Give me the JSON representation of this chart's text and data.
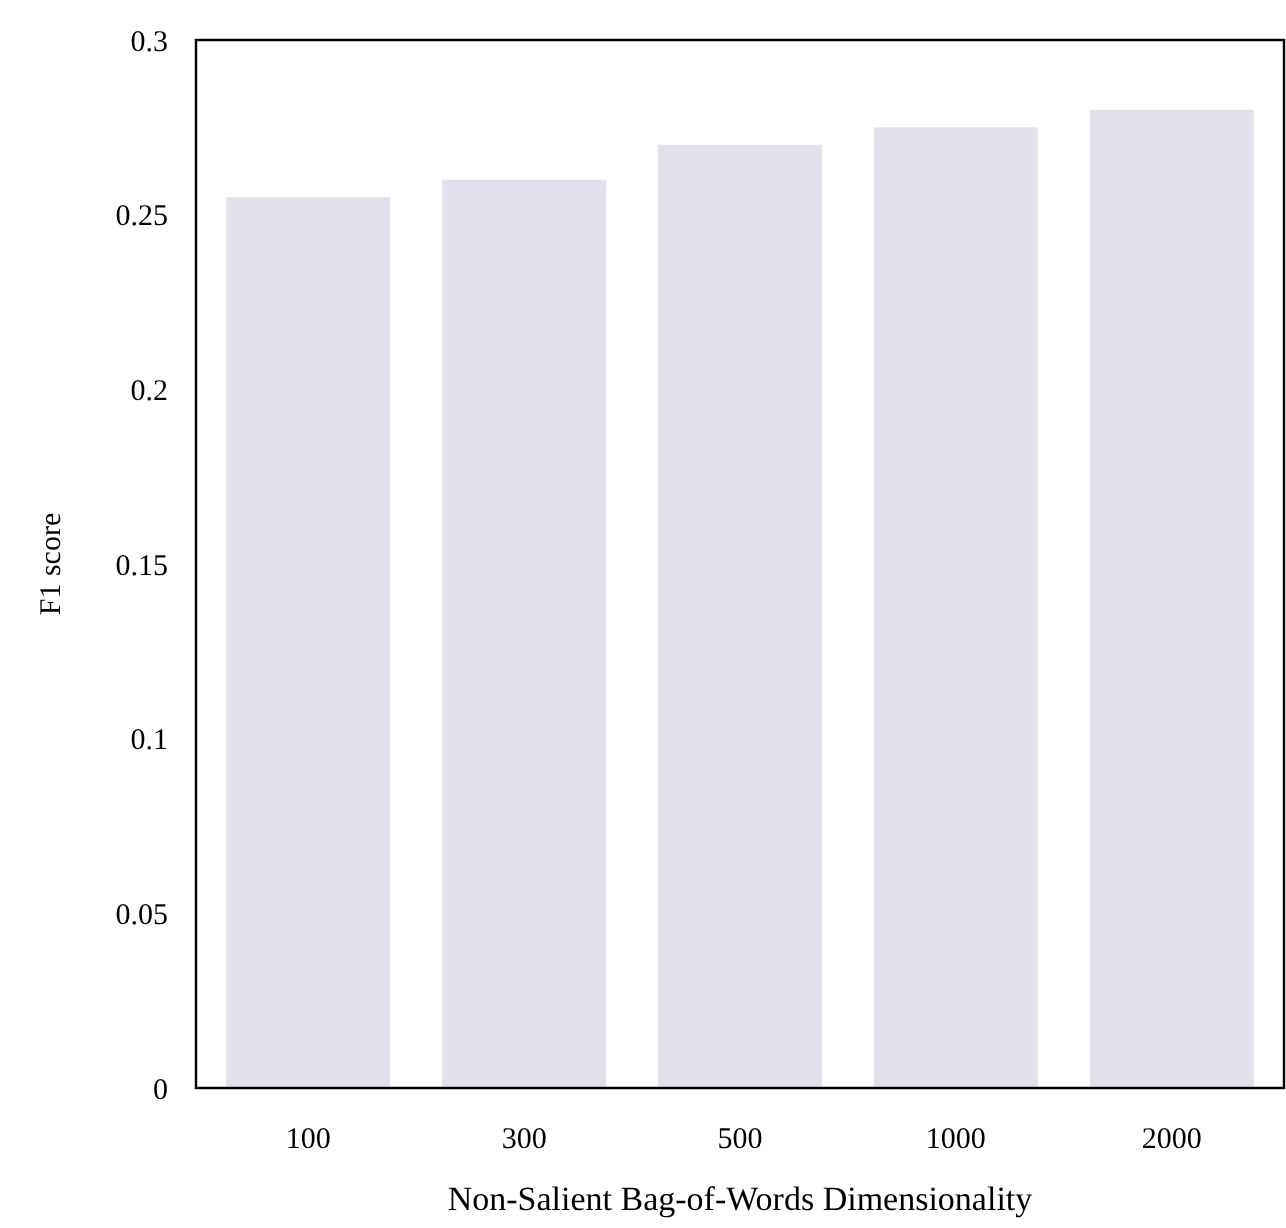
{
  "chart_data": {
    "type": "bar",
    "xlabel": "Non-Salient Bag-of-Words Dimensionality",
    "ylabel": "F1 score",
    "categories": [
      "100",
      "300",
      "500",
      "1000",
      "2000"
    ],
    "values": [
      0.255,
      0.26,
      0.27,
      0.275,
      0.28
    ],
    "color": "#e4dfec",
    "ylim": [
      0,
      0.3
    ],
    "yticks": [
      0,
      0.05,
      0.1,
      0.15,
      0.2,
      0.25,
      0.3
    ],
    "grid": false
  }
}
